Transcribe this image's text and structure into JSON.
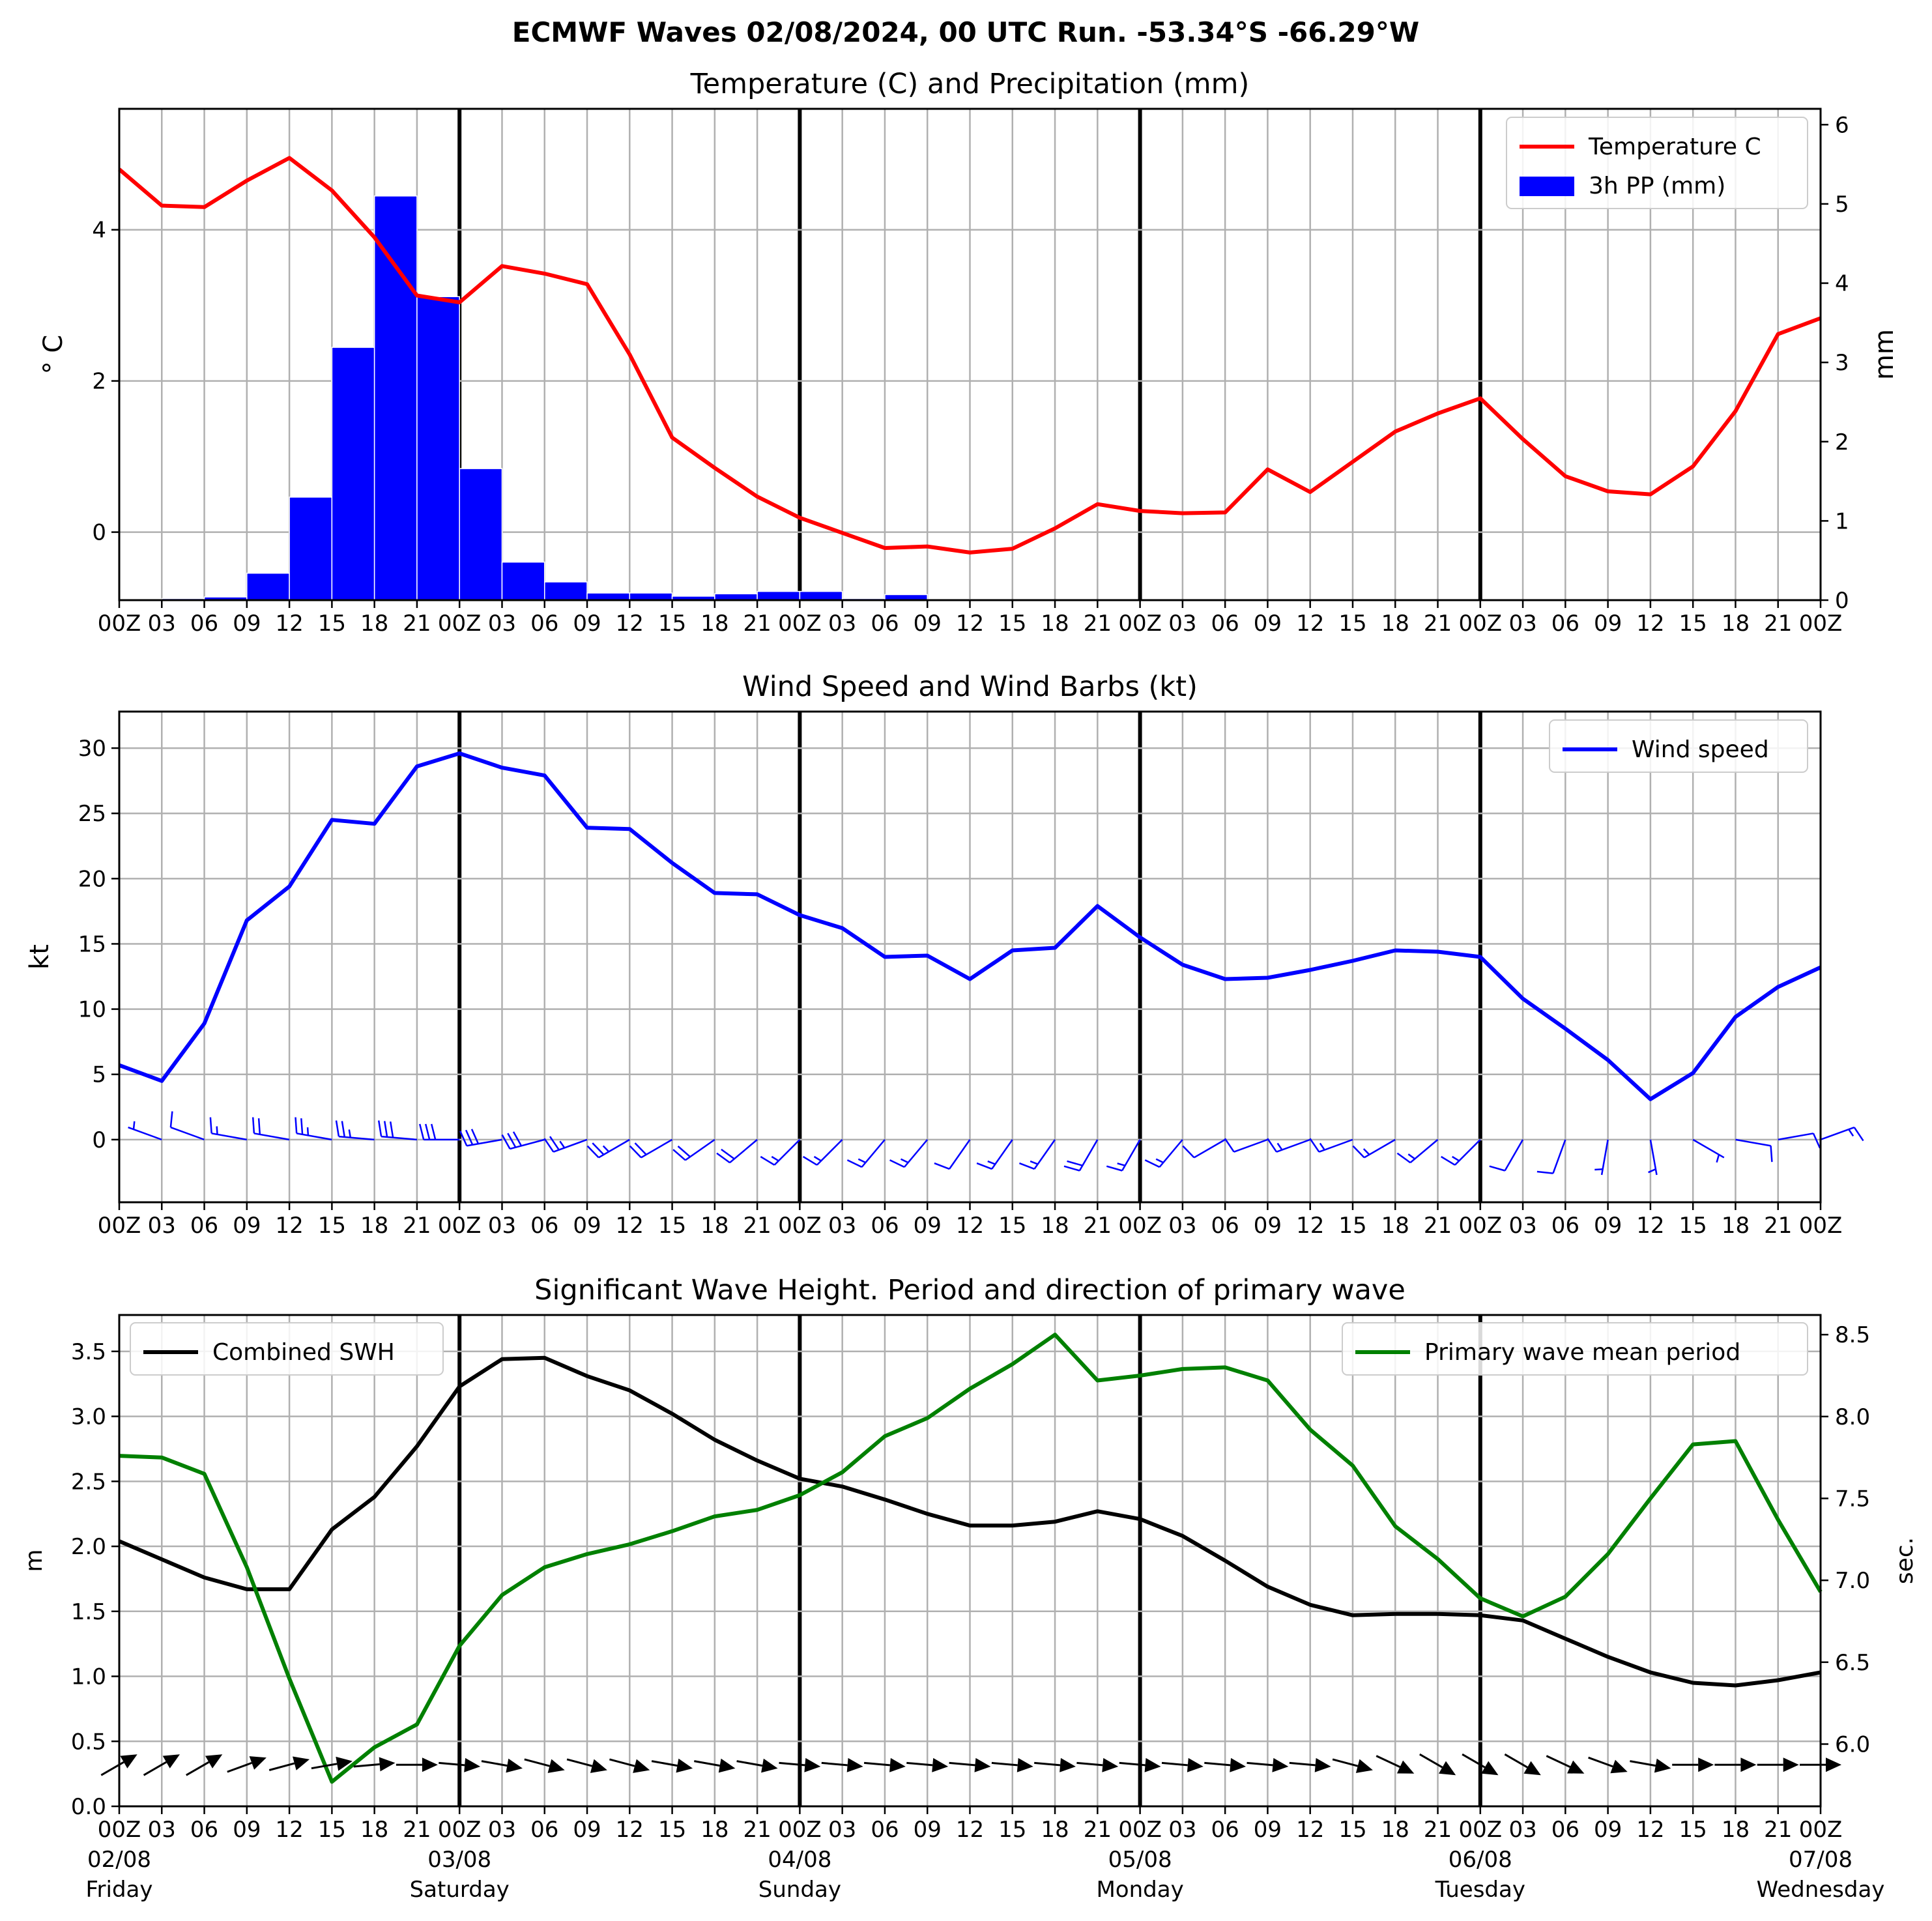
{
  "page": {
    "suptitle": "ECMWF Waves 02/08/2024, 00 UTC Run. -53.34°S -66.29°W"
  },
  "chart_data": [
    {
      "type": "line",
      "id": "temp-precip",
      "title": "Temperature (C) and Precipitation (mm)",
      "ylabel": "$^\\circ$C",
      "ylabel_display": "° C",
      "y2label": "mm",
      "x_hours": [
        0,
        3,
        6,
        9,
        12,
        15,
        18,
        21,
        24,
        27,
        30,
        33,
        36,
        39,
        42,
        45,
        48,
        51,
        54,
        57,
        60,
        63,
        66,
        69,
        72,
        75,
        78,
        81,
        84,
        87,
        90,
        93,
        96,
        99,
        102,
        105,
        108,
        111,
        114,
        117,
        120
      ],
      "x_tick_labels": [
        "00Z",
        "03",
        "06",
        "09",
        "12",
        "15",
        "18",
        "21",
        "00Z",
        "03",
        "06",
        "09",
        "12",
        "15",
        "18",
        "21",
        "00Z",
        "03",
        "06",
        "09",
        "12",
        "15",
        "18",
        "21",
        "00Z",
        "03",
        "06",
        "09",
        "12",
        "15",
        "18",
        "21",
        "00Z",
        "03",
        "06",
        "09",
        "12",
        "15",
        "18",
        "21",
        "00Z"
      ],
      "ylim": [
        -0.9,
        5.6
      ],
      "yticks": [
        0,
        2,
        4
      ],
      "y2lim": [
        0,
        6.2
      ],
      "y2ticks": [
        0,
        1,
        2,
        3,
        4,
        5,
        6
      ],
      "grid": true,
      "legend_position": "upper right",
      "series": [
        {
          "name": "Temperature C",
          "color": "#ff0000",
          "axis": "left",
          "values": [
            4.8,
            4.32,
            4.3,
            4.65,
            4.95,
            4.52,
            3.9,
            3.13,
            3.04,
            3.52,
            3.42,
            3.28,
            2.35,
            1.25,
            0.85,
            0.47,
            0.19,
            -0.01,
            -0.21,
            -0.19,
            -0.27,
            -0.22,
            0.05,
            0.37,
            0.28,
            0.25,
            0.26,
            0.83,
            0.53,
            0.93,
            1.33,
            1.57,
            1.77,
            1.23,
            0.74,
            0.54,
            0.5,
            0.87,
            1.6,
            2.62,
            2.83
          ]
        },
        {
          "name": "3h PP (mm)",
          "color": "#0000ff",
          "type": "bar",
          "axis": "right",
          "values": [
            0.0,
            0.02,
            0.04,
            0.34,
            1.3,
            3.19,
            5.1,
            3.83,
            1.66,
            0.48,
            0.23,
            0.09,
            0.09,
            0.05,
            0.08,
            0.11,
            0.11,
            0.02,
            0.07,
            0.01,
            0.0,
            0.0,
            0.0,
            0.0,
            0.0,
            0.0,
            0.0,
            0.0,
            0.0,
            0.0,
            0.0,
            0.0,
            0.0,
            0.0,
            0.0,
            0.0,
            0.0,
            0.0,
            0.0,
            0.0
          ]
        }
      ]
    },
    {
      "type": "line",
      "id": "wind",
      "title": "Wind Speed and Wind Barbs (kt)",
      "ylabel": "kt",
      "ylim": [
        -4.8,
        32.8
      ],
      "yticks": [
        0,
        5,
        10,
        15,
        20,
        25,
        30
      ],
      "grid": true,
      "legend_position": "upper right",
      "series": [
        {
          "name": "Wind speed",
          "color": "#0000ff",
          "values": [
            5.7,
            4.5,
            8.9,
            16.8,
            19.4,
            24.5,
            24.2,
            28.6,
            29.6,
            28.5,
            27.9,
            23.9,
            23.8,
            21.2,
            18.9,
            18.8,
            17.2,
            16.2,
            14.0,
            14.1,
            12.3,
            14.5,
            14.7,
            17.9,
            15.5,
            13.4,
            12.3,
            12.4,
            13.0,
            13.7,
            14.5,
            14.4,
            14.0,
            10.8,
            8.5,
            6.1,
            3.1,
            5.1,
            9.4,
            11.7,
            13.2
          ]
        }
      ],
      "wind_barbs": {
        "color": "#0000ff",
        "direction_deg": [
          250,
          250,
          250,
          260,
          260,
          260,
          265,
          265,
          270,
          280,
          285,
          290,
          300,
          300,
          305,
          310,
          315,
          315,
          320,
          320,
          325,
          325,
          325,
          330,
          330,
          320,
          300,
          290,
          290,
          290,
          300,
          310,
          315,
          330,
          340,
          350,
          10,
          60,
          80,
          100,
          110
        ],
        "speed_kt": [
          5.7,
          4.5,
          8.9,
          16.8,
          19.4,
          24.5,
          24.2,
          28.6,
          29.6,
          28.5,
          27.9,
          23.9,
          23.8,
          21.2,
          18.9,
          18.8,
          17.2,
          16.2,
          14.0,
          14.1,
          12.3,
          14.5,
          14.7,
          17.9,
          15.5,
          13.4,
          12.3,
          12.4,
          13.0,
          13.7,
          14.5,
          14.4,
          14.0,
          10.8,
          8.5,
          6.1,
          3.1,
          5.1,
          9.4,
          11.7,
          13.2
        ]
      }
    },
    {
      "type": "line",
      "id": "waves",
      "title": "Significant Wave Height. Period and direction of primary wave",
      "ylabel": "m",
      "y2label": "sec.",
      "ylim": [
        0.0,
        3.78
      ],
      "yticks": [
        0.0,
        0.5,
        1.0,
        1.5,
        2.0,
        2.5,
        3.0,
        3.5
      ],
      "y2lim": [
        5.62,
        8.62
      ],
      "y2ticks": [
        6.0,
        6.5,
        7.0,
        7.5,
        8.0,
        8.5
      ],
      "grid": true,
      "legend_position": "upper left / upper right",
      "x_date_labels": [
        {
          "hour": 0,
          "date": "02/08",
          "day": "Friday"
        },
        {
          "hour": 24,
          "date": "03/08",
          "day": "Saturday"
        },
        {
          "hour": 48,
          "date": "04/08",
          "day": "Sunday"
        },
        {
          "hour": 72,
          "date": "05/08",
          "day": "Monday"
        },
        {
          "hour": 96,
          "date": "06/08",
          "day": "Tuesday"
        },
        {
          "hour": 120,
          "date": "07/08",
          "day": "Wednesday"
        }
      ],
      "series": [
        {
          "name": "Combined SWH",
          "color": "#000000",
          "axis": "left",
          "values": [
            2.04,
            1.9,
            1.76,
            1.67,
            1.67,
            2.13,
            2.38,
            2.77,
            3.23,
            3.44,
            3.45,
            3.31,
            3.2,
            3.02,
            2.82,
            2.66,
            2.52,
            2.46,
            2.36,
            2.25,
            2.16,
            2.16,
            2.19,
            2.27,
            2.21,
            2.08,
            1.89,
            1.69,
            1.55,
            1.47,
            1.48,
            1.48,
            1.47,
            1.43,
            1.29,
            1.15,
            1.03,
            0.95,
            0.93,
            0.97,
            1.03
          ]
        },
        {
          "name": "Primary wave mean period",
          "color": "#008000",
          "axis": "right",
          "values": [
            7.76,
            7.75,
            7.65,
            7.08,
            6.4,
            5.77,
            5.98,
            6.12,
            6.6,
            6.91,
            7.08,
            7.16,
            7.22,
            7.3,
            7.39,
            7.43,
            7.52,
            7.66,
            7.88,
            7.99,
            8.17,
            8.32,
            8.5,
            8.22,
            8.25,
            8.29,
            8.3,
            8.22,
            7.92,
            7.7,
            7.33,
            7.13,
            6.89,
            6.78,
            6.9,
            7.16,
            7.5,
            7.83,
            7.85,
            7.37,
            6.93
          ]
        }
      ],
      "wave_direction": {
        "color": "#000000",
        "direction_deg": [
          240,
          240,
          240,
          250,
          255,
          260,
          265,
          270,
          275,
          280,
          285,
          285,
          285,
          280,
          280,
          280,
          275,
          275,
          275,
          275,
          275,
          275,
          275,
          275,
          275,
          275,
          275,
          275,
          275,
          285,
          295,
          300,
          300,
          300,
          295,
          290,
          280,
          270,
          270,
          270,
          270
        ]
      }
    }
  ]
}
